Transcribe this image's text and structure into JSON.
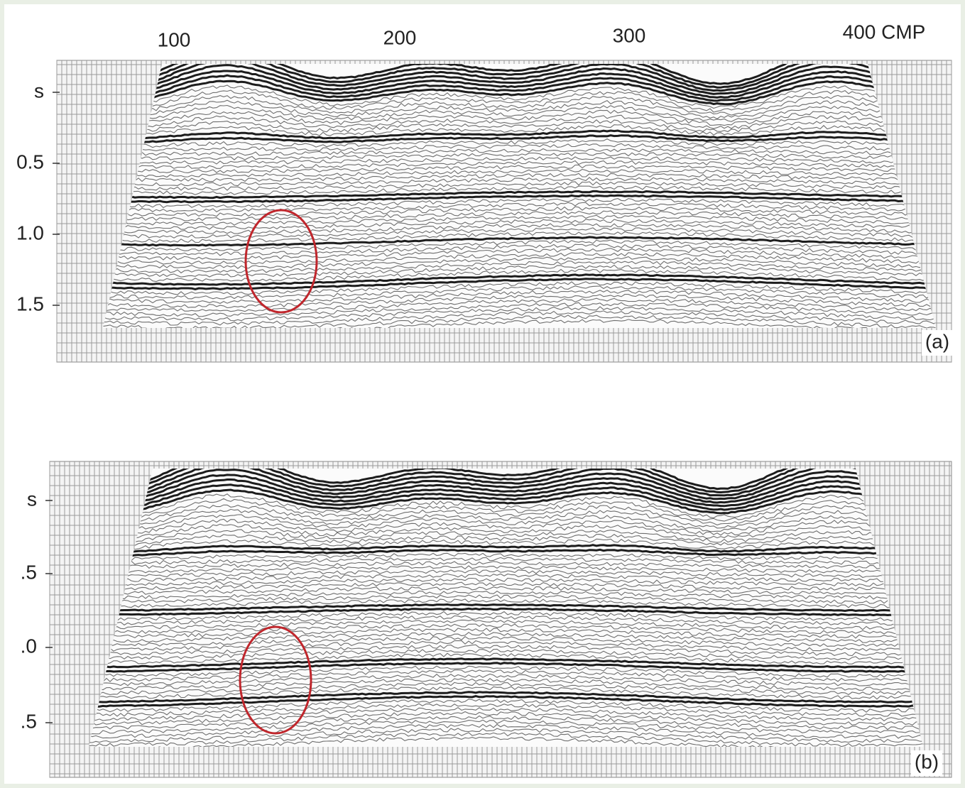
{
  "figure": {
    "cmp_labels": [
      "100",
      "200",
      "300",
      "400 CMP"
    ],
    "panels": [
      {
        "label": "(a)",
        "time_labels": [
          "s",
          "0.5",
          "1.0",
          "1.5"
        ]
      },
      {
        "label": "(b)",
        "time_labels": [
          "s",
          ".5",
          ".0",
          ".5"
        ]
      }
    ]
  }
}
